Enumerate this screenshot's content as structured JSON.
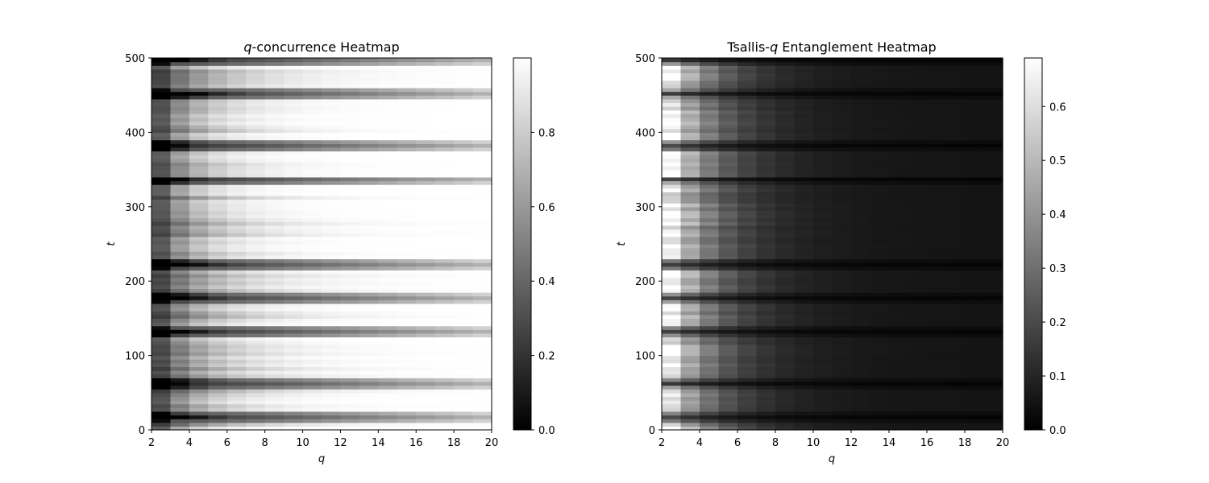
{
  "chart_data": [
    {
      "type": "heatmap",
      "title_italic": "q",
      "title_rest": "-concurrence Heatmap",
      "xlabel": "q",
      "ylabel": "t",
      "xlim": [
        2,
        20
      ],
      "ylim": [
        0,
        500
      ],
      "xticks": [
        "2",
        "4",
        "6",
        "8",
        "10",
        "12",
        "14",
        "16",
        "18",
        "20"
      ],
      "yticks": [
        "0",
        "100",
        "200",
        "300",
        "400",
        "500"
      ],
      "colorbar": {
        "range": [
          0,
          1
        ],
        "ticks": [
          "0.0",
          "0.2",
          "0.4",
          "0.6",
          "0.8"
        ],
        "tick_values": [
          0,
          0.2,
          0.4,
          0.6,
          0.8
        ]
      },
      "colormap": "gray",
      "q_values": [
        2,
        3,
        4,
        5,
        6,
        7,
        8,
        9,
        10,
        11,
        12,
        13,
        14,
        15,
        16,
        17,
        18,
        19,
        20
      ],
      "dark_rows_t": [
        18,
        63,
        133,
        177,
        222,
        336,
        382,
        452,
        497
      ],
      "description_rows": "values near 0.3-0.4 at q=2 rising toward 1.0 for large q; periodic dips at listed t"
    },
    {
      "type": "heatmap",
      "title_rest_pre": "Tsallis-",
      "title_italic": "q",
      "title_rest": " Entanglement Heatmap",
      "xlabel": "q",
      "ylabel": "t",
      "xlim": [
        2,
        20
      ],
      "ylim": [
        0,
        500
      ],
      "xticks": [
        "2",
        "4",
        "6",
        "8",
        "10",
        "12",
        "14",
        "16",
        "18",
        "20"
      ],
      "yticks": [
        "0",
        "100",
        "200",
        "300",
        "400",
        "500"
      ],
      "colorbar": {
        "range": [
          0,
          0.69
        ],
        "ticks": [
          "0.0",
          "0.1",
          "0.2",
          "0.3",
          "0.4",
          "0.5",
          "0.6"
        ],
        "tick_values": [
          0,
          0.1,
          0.2,
          0.3,
          0.4,
          0.5,
          0.6
        ]
      },
      "colormap": "gray",
      "q_values": [
        2,
        3,
        4,
        5,
        6,
        7,
        8,
        9,
        10,
        11,
        12,
        13,
        14,
        15,
        16,
        17,
        18,
        19,
        20
      ],
      "dark_rows_t": [
        18,
        63,
        133,
        177,
        222,
        336,
        382,
        452,
        497
      ],
      "description_rows": "values near 0.6-0.69 at q=2 decaying toward ~0.05 for large q; periodic dips at listed t"
    }
  ]
}
